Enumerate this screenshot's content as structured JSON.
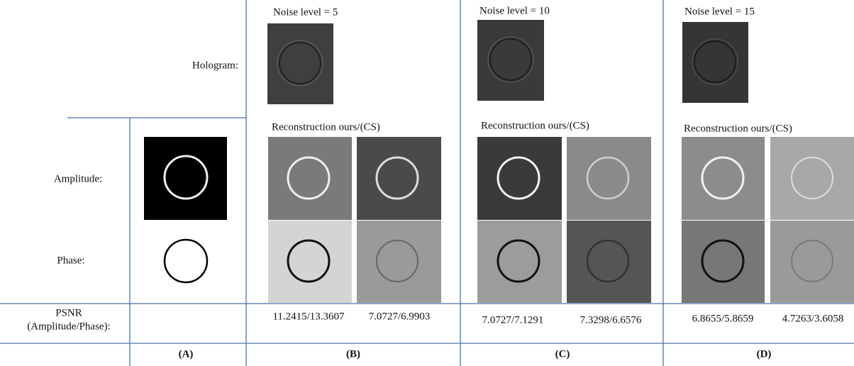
{
  "row_labels": {
    "hologram": "Hologram:",
    "amplitude": "Amplitude:",
    "phase": "Phase:",
    "psnr": [
      "PSNR",
      "(Amplitude/Phase):"
    ]
  },
  "columns": [
    {
      "label": "(A)"
    },
    {
      "label": "(B)",
      "noise": "Noise level = 5",
      "reconstruction": "Reconstruction ours/(CS)",
      "psnr": [
        "11.2415/13.3607",
        "7.0727/6.9903"
      ]
    },
    {
      "label": "(C)",
      "noise": "Noise level = 10",
      "reconstruction": "Reconstruction ours/(CS)",
      "psnr": [
        "7.0727/7.1291",
        "7.3298/6.6576"
      ]
    },
    {
      "label": "(D)",
      "noise": "Noise level = 15",
      "reconstruction": "Reconstruction ours/(CS)",
      "psnr": [
        "6.8655/5.8659",
        "4.7263/3.6058"
      ]
    }
  ]
}
